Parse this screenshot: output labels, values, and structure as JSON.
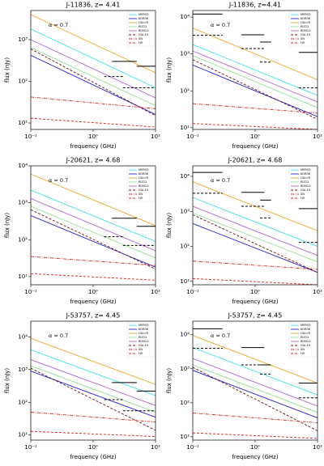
{
  "chart_data": [
    {
      "type": "line",
      "title": "J-11836, z= 4.41",
      "xlabel": "frequency (GHz)",
      "ylabel": "flux (nJy)",
      "annotation": "α = 0.7",
      "log": true,
      "x": [
        0.1,
        10
      ],
      "xlim": [
        0.1,
        10
      ],
      "ylim": [
        7,
        5000
      ],
      "xticks": [
        {
          "value": 0.1,
          "label": "10⁻¹"
        },
        {
          "value": 1,
          "label": "10⁰"
        },
        {
          "value": 10,
          "label": "10¹"
        }
      ],
      "yticks": [
        {
          "value": 10,
          "label": "10¹"
        },
        {
          "value": 100,
          "label": "10²"
        },
        {
          "value": 1000,
          "label": "10³"
        }
      ],
      "series": [
        {
          "name": "MER03",
          "color": "#3fe0e8",
          "dash": "solid",
          "values": [
            1800,
            70
          ]
        },
        {
          "name": "KOR06",
          "color": "#1e1ed2",
          "dash": "solid",
          "values": [
            420,
            16
          ]
        },
        {
          "name": "GUL09",
          "color": "#f2a52a",
          "dash": "solid",
          "values": [
            4000,
            160
          ]
        },
        {
          "name": "PIZ12",
          "color": "#8ee08e",
          "dash": "solid",
          "values": [
            650,
            26
          ]
        },
        {
          "name": "BON13",
          "color": "#b065d8",
          "dash": "solid",
          "values": [
            1000,
            40
          ]
        },
        {
          "name": "GUL19",
          "color": "#6e1010",
          "dash": "dashed",
          "values": [
            600,
            15
          ]
        },
        {
          "name": "SN",
          "color": "#e02020",
          "dash": "dashdot",
          "values": [
            42,
            22
          ]
        },
        {
          "name": "HII",
          "color": "#e02020",
          "dash": "dashed",
          "values": [
            13,
            8
          ]
        }
      ],
      "limits": [
        {
          "x": [
            2,
            5
          ],
          "y": 300,
          "style": "solid"
        },
        {
          "x": [
            5,
            10
          ],
          "y": 230,
          "style": "solid"
        },
        {
          "x": [
            1.5,
            3
          ],
          "y": 130,
          "style": "dashed"
        },
        {
          "x": [
            3,
            10
          ],
          "y": 70,
          "style": "dashed"
        }
      ]
    },
    {
      "type": "line",
      "title": "J-11836, z=4.41",
      "xlabel": "frequency (GHz)",
      "ylabel": "flux (nJy)",
      "annotation": "α = 0.7",
      "log": true,
      "x": [
        0.1,
        10
      ],
      "xlim": [
        0.1,
        10
      ],
      "ylim": [
        9,
        15000
      ],
      "xticks": [
        {
          "value": 0.1,
          "label": "10⁻¹"
        },
        {
          "value": 1,
          "label": "10⁰"
        },
        {
          "value": 10,
          "label": "10¹"
        }
      ],
      "yticks": [
        {
          "value": 10,
          "label": "10¹"
        },
        {
          "value": 100,
          "label": "10²"
        },
        {
          "value": 1000,
          "label": "10³"
        },
        {
          "value": 10000,
          "label": "10⁴"
        }
      ],
      "series": [
        {
          "name": "MER03",
          "color": "#3fe0e8",
          "dash": "solid",
          "values": [
            1800,
            75
          ]
        },
        {
          "name": "KOR06",
          "color": "#1e1ed2",
          "dash": "solid",
          "values": [
            500,
            20
          ]
        },
        {
          "name": "GUL09",
          "color": "#f2a52a",
          "dash": "solid",
          "values": [
            5000,
            200
          ]
        },
        {
          "name": "PIZ12",
          "color": "#8ee08e",
          "dash": "solid",
          "values": [
            900,
            35
          ]
        },
        {
          "name": "BON13",
          "color": "#b065d8",
          "dash": "solid",
          "values": [
            1200,
            50
          ]
        },
        {
          "name": "GUL19",
          "color": "#6e1010",
          "dash": "dashed",
          "values": [
            700,
            17
          ]
        },
        {
          "name": "SN",
          "color": "#e02020",
          "dash": "dashdot",
          "values": [
            45,
            25
          ]
        },
        {
          "name": "HII",
          "color": "#e02020",
          "dash": "dashed",
          "values": [
            13,
            9
          ]
        }
      ],
      "limits": [
        {
          "x": [
            0.1,
            0.3
          ],
          "y": 12000,
          "style": "solid"
        },
        {
          "x": [
            0.6,
            1.4
          ],
          "y": 3300,
          "style": "solid"
        },
        {
          "x": [
            1.2,
            1.8
          ],
          "y": 2100,
          "style": "solid"
        },
        {
          "x": [
            5,
            10
          ],
          "y": 1100,
          "style": "solid"
        },
        {
          "x": [
            0.1,
            0.3
          ],
          "y": 3200,
          "style": "dashed"
        },
        {
          "x": [
            0.6,
            1.4
          ],
          "y": 1400,
          "style": "dashed"
        },
        {
          "x": [
            1.2,
            1.8
          ],
          "y": 600,
          "style": "dashed"
        },
        {
          "x": [
            5,
            10
          ],
          "y": 120,
          "style": "dashed"
        }
      ]
    },
    {
      "type": "line",
      "title": "J-20621, z= 4.68",
      "xlabel": "frequency (GHz)",
      "ylabel": "flux (nJy)",
      "annotation": "α = 0.7",
      "log": true,
      "x": [
        0.1,
        10
      ],
      "xlim": [
        0.1,
        10
      ],
      "ylim": [
        6,
        10000
      ],
      "xticks": [
        {
          "value": 0.1,
          "label": "10⁻¹"
        },
        {
          "value": 1,
          "label": "10⁰"
        },
        {
          "value": 10,
          "label": "10¹"
        }
      ],
      "yticks": [
        {
          "value": 10,
          "label": "10¹"
        },
        {
          "value": 100,
          "label": "10²"
        },
        {
          "value": 1000,
          "label": "10³"
        },
        {
          "value": 10000,
          "label": "10⁴"
        }
      ],
      "series": [
        {
          "name": "MER03",
          "color": "#3fe0e8",
          "dash": "solid",
          "values": [
            2200,
            90
          ]
        },
        {
          "name": "KOR06",
          "color": "#1e1ed2",
          "dash": "solid",
          "values": [
            450,
            18
          ]
        },
        {
          "name": "GUL09",
          "color": "#f2a52a",
          "dash": "solid",
          "values": [
            6000,
            240
          ]
        },
        {
          "name": "PIZ12",
          "color": "#8ee08e",
          "dash": "solid",
          "values": [
            800,
            32
          ]
        },
        {
          "name": "BON13",
          "color": "#b065d8",
          "dash": "solid",
          "values": [
            1300,
            50
          ]
        },
        {
          "name": "GUL19",
          "color": "#6e1010",
          "dash": "dashed",
          "values": [
            650,
            16
          ]
        },
        {
          "name": "SN",
          "color": "#e02020",
          "dash": "dashdot",
          "values": [
            35,
            20
          ]
        },
        {
          "name": "HII",
          "color": "#e02020",
          "dash": "dashed",
          "values": [
            12,
            8
          ]
        }
      ],
      "limits": [
        {
          "x": [
            2,
            5
          ],
          "y": 380,
          "style": "solid"
        },
        {
          "x": [
            5,
            10
          ],
          "y": 230,
          "style": "solid"
        },
        {
          "x": [
            1.5,
            3
          ],
          "y": 120,
          "style": "dashed"
        },
        {
          "x": [
            3,
            10
          ],
          "y": 70,
          "style": "dashed"
        }
      ]
    },
    {
      "type": "line",
      "title": "J-20621, z= 4.68",
      "xlabel": "frequency (GHz)",
      "ylabel": "flux (nJy)",
      "annotation": "α = 0.7",
      "log": true,
      "x": [
        0.1,
        10
      ],
      "xlim": [
        0.1,
        10
      ],
      "ylim": [
        8,
        20000
      ],
      "xticks": [
        {
          "value": 0.1,
          "label": "10⁻¹"
        },
        {
          "value": 1,
          "label": "10⁰"
        },
        {
          "value": 10,
          "label": "10¹"
        }
      ],
      "yticks": [
        {
          "value": 10,
          "label": "10¹"
        },
        {
          "value": 100,
          "label": "10²"
        },
        {
          "value": 1000,
          "label": "10³"
        },
        {
          "value": 10000,
          "label": "10⁴"
        }
      ],
      "series": [
        {
          "name": "MER03",
          "color": "#3fe0e8",
          "dash": "solid",
          "values": [
            2500,
            100
          ]
        },
        {
          "name": "KOR06",
          "color": "#1e1ed2",
          "dash": "solid",
          "values": [
            450,
            18
          ]
        },
        {
          "name": "GUL09",
          "color": "#f2a52a",
          "dash": "solid",
          "values": [
            7000,
            280
          ]
        },
        {
          "name": "PIZ12",
          "color": "#8ee08e",
          "dash": "solid",
          "values": [
            900,
            36
          ]
        },
        {
          "name": "BON13",
          "color": "#b065d8",
          "dash": "solid",
          "values": [
            1400,
            55
          ]
        },
        {
          "name": "GUL19",
          "color": "#6e1010",
          "dash": "dashed",
          "values": [
            800,
            18
          ]
        },
        {
          "name": "SN",
          "color": "#e02020",
          "dash": "dashdot",
          "values": [
            38,
            22
          ]
        },
        {
          "name": "HII",
          "color": "#e02020",
          "dash": "dashed",
          "values": [
            12,
            8
          ]
        }
      ],
      "limits": [
        {
          "x": [
            0.1,
            0.3
          ],
          "y": 13000,
          "style": "solid"
        },
        {
          "x": [
            0.6,
            1.4
          ],
          "y": 3500,
          "style": "solid"
        },
        {
          "x": [
            1.2,
            1.8
          ],
          "y": 2100,
          "style": "solid"
        },
        {
          "x": [
            5,
            10
          ],
          "y": 1200,
          "style": "solid"
        },
        {
          "x": [
            0.1,
            0.3
          ],
          "y": 3300,
          "style": "dashed"
        },
        {
          "x": [
            0.6,
            1.4
          ],
          "y": 1400,
          "style": "dashed"
        },
        {
          "x": [
            1.2,
            1.8
          ],
          "y": 650,
          "style": "dashed"
        },
        {
          "x": [
            5,
            10
          ],
          "y": 130,
          "style": "dashed"
        }
      ]
    },
    {
      "type": "line",
      "title": "J-53757, z= 4.45",
      "xlabel": "frequency (GHz)",
      "ylabel": "flux (nJy)",
      "annotation": "α = 0.7",
      "log": true,
      "x": [
        0.1,
        10
      ],
      "xlim": [
        0.1,
        10
      ],
      "ylim": [
        7,
        30000
      ],
      "xticks": [
        {
          "value": 0.1,
          "label": "10⁻¹"
        },
        {
          "value": 1,
          "label": "10⁰"
        },
        {
          "value": 10,
          "label": "10¹"
        }
      ],
      "yticks": [
        {
          "value": 10,
          "label": "10¹"
        },
        {
          "value": 100,
          "label": "10²"
        },
        {
          "value": 1000,
          "label": "10³"
        },
        {
          "value": 10000,
          "label": "10⁴"
        }
      ],
      "series": [
        {
          "name": "MER03",
          "color": "#3fe0e8",
          "dash": "solid",
          "values": [
            4000,
            160
          ]
        },
        {
          "name": "KOR06",
          "color": "#1e1ed2",
          "dash": "solid",
          "values": [
            900,
            35
          ]
        },
        {
          "name": "GUL09",
          "color": "#f2a52a",
          "dash": "solid",
          "values": [
            9000,
            350
          ]
        },
        {
          "name": "PIZ12",
          "color": "#8ee08e",
          "dash": "solid",
          "values": [
            1300,
            50
          ]
        },
        {
          "name": "BON13",
          "color": "#b065d8",
          "dash": "solid",
          "values": [
            2000,
            80
          ]
        },
        {
          "name": "GUL19",
          "color": "#6e1010",
          "dash": "dashed",
          "values": [
            1100,
            14
          ]
        },
        {
          "name": "SN",
          "color": "#e02020",
          "dash": "dashdot",
          "values": [
            50,
            25
          ]
        },
        {
          "name": "HII",
          "color": "#e02020",
          "dash": "dashed",
          "values": [
            13,
            9
          ]
        }
      ],
      "limits": [
        {
          "x": [
            2,
            5
          ],
          "y": 400,
          "style": "solid"
        },
        {
          "x": [
            5,
            10
          ],
          "y": 220,
          "style": "solid"
        },
        {
          "x": [
            1.5,
            3
          ],
          "y": 120,
          "style": "dashed"
        },
        {
          "x": [
            3,
            10
          ],
          "y": 55,
          "style": "dashed"
        }
      ]
    },
    {
      "type": "line",
      "title": "J-53757, z= 4.45",
      "xlabel": "frequency (GHz)",
      "ylabel": "flux (nJy)",
      "annotation": "α = 0.7",
      "log": true,
      "x": [
        0.1,
        10
      ],
      "xlim": [
        0.1,
        10
      ],
      "ylim": [
        8,
        25000
      ],
      "xticks": [
        {
          "value": 0.1,
          "label": "10⁻¹"
        },
        {
          "value": 1,
          "label": "10⁰"
        },
        {
          "value": 10,
          "label": "10¹"
        }
      ],
      "yticks": [
        {
          "value": 10,
          "label": "10¹"
        },
        {
          "value": 100,
          "label": "10²"
        },
        {
          "value": 1000,
          "label": "10³"
        },
        {
          "value": 10000,
          "label": "10⁴"
        }
      ],
      "series": [
        {
          "name": "MER03",
          "color": "#3fe0e8",
          "dash": "solid",
          "values": [
            4200,
            170
          ]
        },
        {
          "name": "KOR06",
          "color": "#1e1ed2",
          "dash": "solid",
          "values": [
            900,
            36
          ]
        },
        {
          "name": "GUL09",
          "color": "#f2a52a",
          "dash": "solid",
          "values": [
            9500,
            380
          ]
        },
        {
          "name": "PIZ12",
          "color": "#8ee08e",
          "dash": "solid",
          "values": [
            1300,
            52
          ]
        },
        {
          "name": "BON13",
          "color": "#b065d8",
          "dash": "solid",
          "values": [
            2000,
            80
          ]
        },
        {
          "name": "GUL19",
          "color": "#6e1010",
          "dash": "dashed",
          "values": [
            1100,
            15
          ]
        },
        {
          "name": "SN",
          "color": "#e02020",
          "dash": "dashdot",
          "values": [
            50,
            26
          ]
        },
        {
          "name": "HII",
          "color": "#e02020",
          "dash": "dashed",
          "values": [
            13,
            9
          ]
        }
      ],
      "limits": [
        {
          "x": [
            0.1,
            0.3
          ],
          "y": 15000,
          "style": "solid"
        },
        {
          "x": [
            0.6,
            1.4
          ],
          "y": 4200,
          "style": "solid"
        },
        {
          "x": [
            1.2,
            1.8
          ],
          "y": 1300,
          "style": "solid"
        },
        {
          "x": [
            5,
            10
          ],
          "y": 380,
          "style": "solid"
        },
        {
          "x": [
            0.1,
            0.3
          ],
          "y": 4000,
          "style": "dashed"
        },
        {
          "x": [
            0.6,
            1.4
          ],
          "y": 1300,
          "style": "dashed"
        },
        {
          "x": [
            1.2,
            1.8
          ],
          "y": 700,
          "style": "dashed"
        },
        {
          "x": [
            5,
            10
          ],
          "y": 140,
          "style": "dashed"
        }
      ]
    }
  ]
}
